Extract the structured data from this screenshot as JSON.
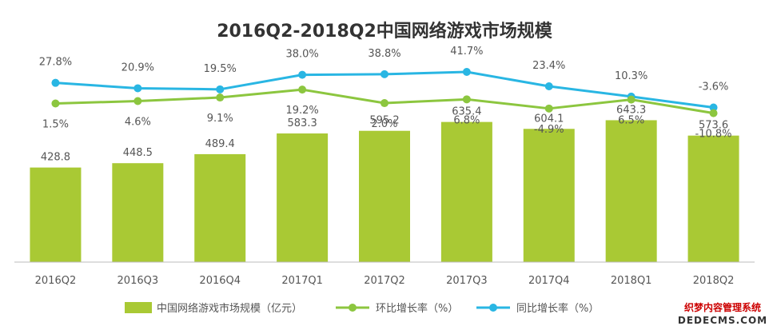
{
  "chart_data": {
    "type": "bar",
    "title": "2016Q2-2018Q2中国网络游戏市场规模",
    "categories": [
      "2016Q2",
      "2016Q3",
      "2016Q4",
      "2017Q1",
      "2017Q2",
      "2017Q3",
      "2017Q4",
      "2018Q1",
      "2018Q2"
    ],
    "series": [
      {
        "name": "中国网络游戏市场规模（亿元）",
        "type": "bar",
        "color": "#a9c934",
        "values": [
          428.8,
          448.5,
          489.4,
          583.3,
          595.2,
          635.4,
          604.1,
          643.3,
          573.6
        ],
        "labels": [
          "428.8",
          "448.5",
          "489.4",
          "583.3",
          "595.2",
          "635.4",
          "604.1",
          "643.3",
          "573.6"
        ]
      },
      {
        "name": "环比增长率（%）",
        "type": "line",
        "color": "#8cc63f",
        "values": [
          1.5,
          4.6,
          9.1,
          19.2,
          2.0,
          6.8,
          -4.9,
          6.5,
          -10.8
        ],
        "labels": [
          "1.5%",
          "4.6%",
          "9.1%",
          "19.2%",
          "2.0%",
          "6.8%",
          "-4.9%",
          "6.5%",
          "-10.8%"
        ]
      },
      {
        "name": "同比增长率（%）",
        "type": "line",
        "color": "#29b6e3",
        "values": [
          27.8,
          20.9,
          19.5,
          38.0,
          38.8,
          41.7,
          23.4,
          10.3,
          -3.6
        ],
        "labels": [
          "27.8%",
          "20.9%",
          "19.5%",
          "38.0%",
          "38.8%",
          "41.7%",
          "23.4%",
          "10.3%",
          "-3.6%"
        ]
      }
    ],
    "legend_position": "bottom",
    "grid": false
  },
  "watermark": {
    "line1": "织梦内容管理系统",
    "line2": "DEDECMS.COM"
  }
}
